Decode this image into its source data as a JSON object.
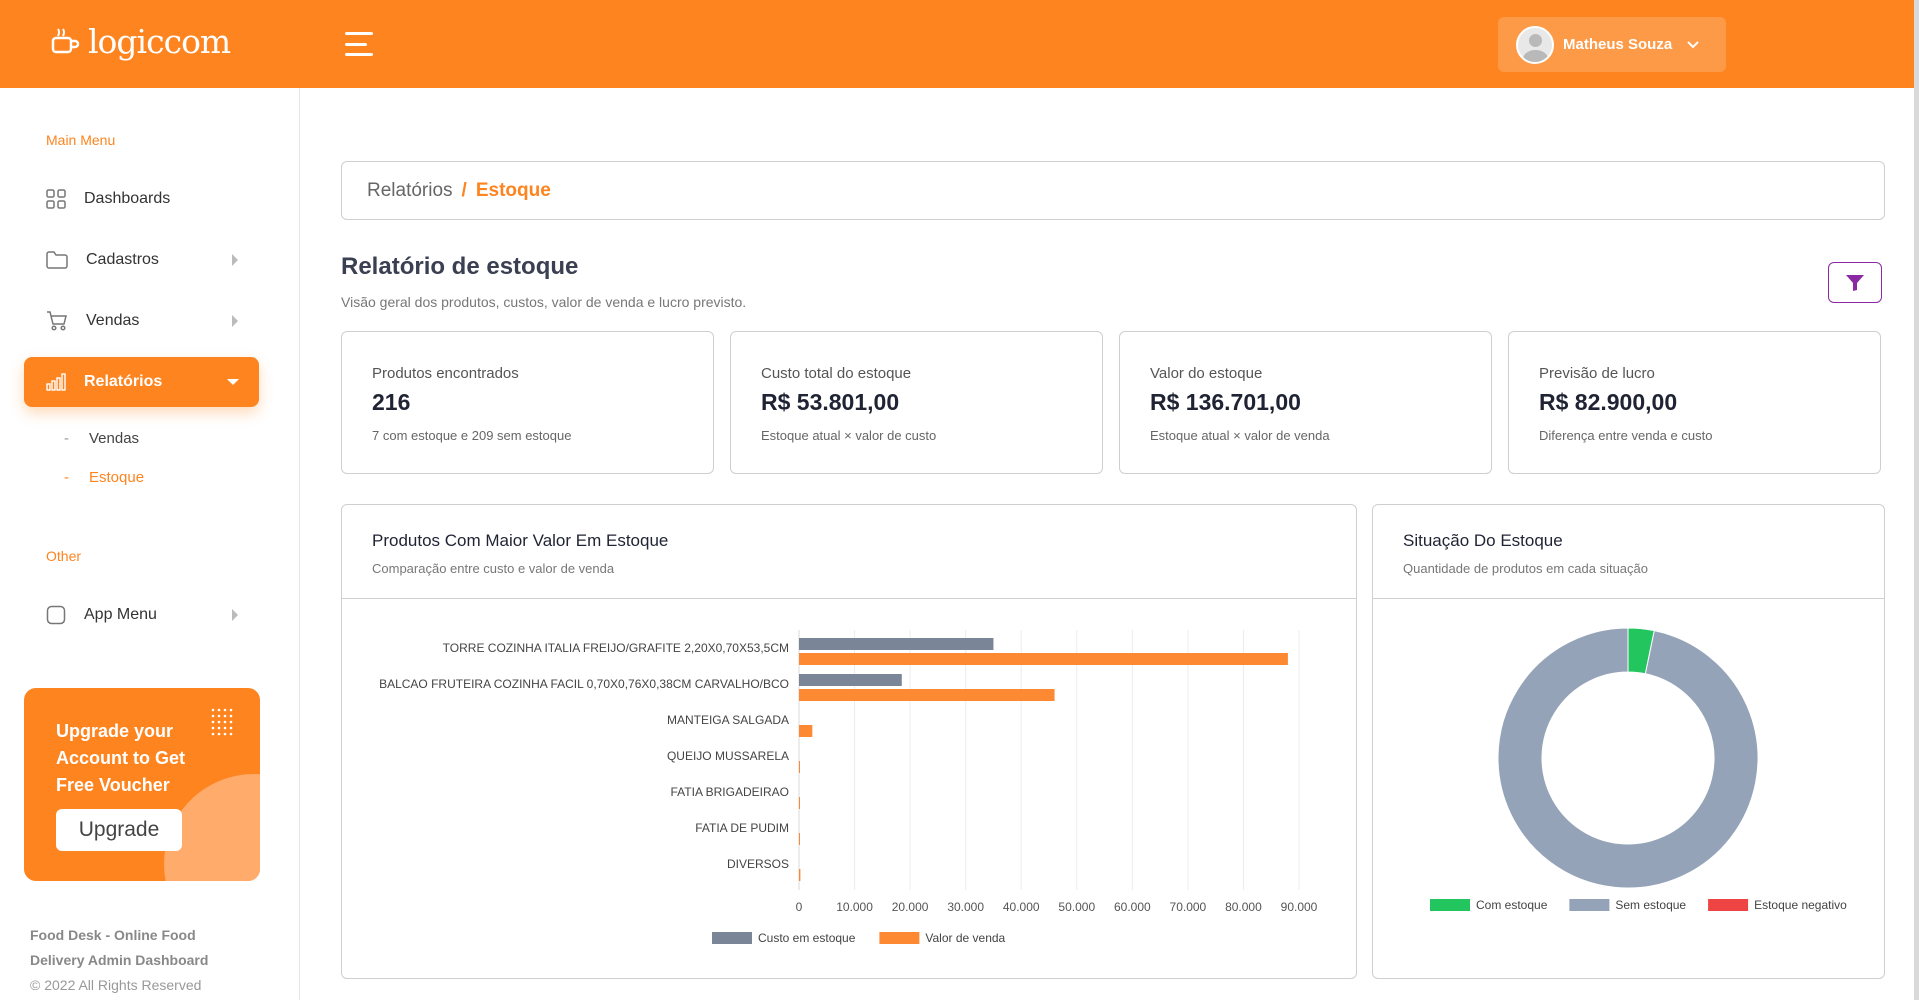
{
  "header": {
    "logo_text": "logiccom",
    "user_name": "Matheus Souza"
  },
  "sidebar": {
    "main_menu_title": "Main Menu",
    "items": [
      {
        "label": "Dashboards",
        "icon": "grid-icon"
      },
      {
        "label": "Cadastros",
        "icon": "folder-icon"
      },
      {
        "label": "Vendas",
        "icon": "cart-icon"
      },
      {
        "label": "Relatórios",
        "icon": "bar-chart-icon"
      }
    ],
    "subitems": [
      "Vendas",
      "Estoque"
    ],
    "other_title": "Other",
    "app_menu_label": "App Menu",
    "upgrade": {
      "text": "Upgrade your Account to Get Free Voucher",
      "button": "Upgrade"
    },
    "footer": {
      "title": "Food Desk - Online Food Delivery Admin Dashboard",
      "copyright": "© 2022 All Rights Reserved"
    }
  },
  "breadcrumb": {
    "parent": "Relatórios",
    "separator": "/",
    "current": "Estoque"
  },
  "page": {
    "title": "Relatório de estoque",
    "subtitle": "Visão geral dos produtos, custos, valor de venda e lucro previsto."
  },
  "stats": [
    {
      "label": "Produtos encontrados",
      "value": "216",
      "note": "7 com estoque e 209 sem estoque"
    },
    {
      "label": "Custo total do estoque",
      "value": "R$ 53.801,00",
      "note": "Estoque atual × valor de custo"
    },
    {
      "label": "Valor do estoque",
      "value": "R$ 136.701,00",
      "note": "Estoque atual × valor de venda"
    },
    {
      "label": "Previsão de lucro",
      "value": "R$ 82.900,00",
      "note": "Diferença entre venda e custo"
    }
  ],
  "bar_chart_card": {
    "title": "Produtos Com Maior Valor Em Estoque",
    "subtitle": "Comparação entre custo e valor de venda"
  },
  "donut_chart_card": {
    "title": "Situação Do Estoque",
    "subtitle": "Quantidade de produtos em cada situação"
  },
  "chart_data": [
    {
      "type": "bar",
      "orientation": "horizontal",
      "title": "Produtos Com Maior Valor Em Estoque",
      "categories": [
        "TORRE COZINHA ITALIA FREIJO/GRAFITE 2,20X0,70X53,5CM",
        "BALCAO FRUTEIRA COZINHA FACIL 0,70X0,76X0,38CM CARVALHO/BCO",
        "MANTEIGA SALGADA",
        "QUEIJO MUSSARELA",
        "FATIA BRIGADEIRAO",
        "FATIA DE PUDIM",
        "DIVERSOS"
      ],
      "series": [
        {
          "name": "Custo em estoque",
          "color": "#7a8597",
          "values": [
            35000,
            18500,
            0,
            0,
            0,
            0,
            0
          ]
        },
        {
          "name": "Valor de venda",
          "color": "#fd8a33",
          "values": [
            88000,
            46000,
            2400,
            150,
            120,
            120,
            250
          ]
        }
      ],
      "xlim": [
        0,
        90000
      ],
      "x_ticks": [
        "0",
        "10.000",
        "20.000",
        "30.000",
        "40.000",
        "50.000",
        "60.000",
        "70.000",
        "80.000",
        "90.000"
      ],
      "grid": true,
      "legend": "bottom"
    },
    {
      "type": "pie",
      "variant": "donut",
      "title": "Situação Do Estoque",
      "labels": [
        "Com estoque",
        "Sem estoque",
        "Estoque negativo"
      ],
      "values": [
        7,
        209,
        0
      ],
      "colors": [
        "#22c55e",
        "#95a3b8",
        "#ef4444"
      ],
      "legend": "bottom"
    }
  ]
}
